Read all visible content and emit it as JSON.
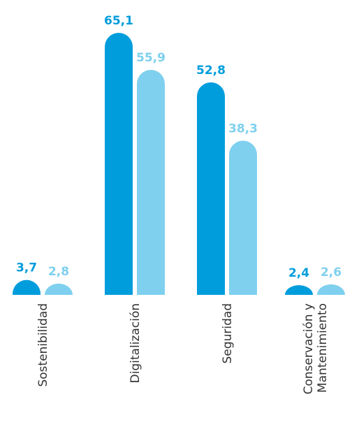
{
  "chart_data": {
    "type": "bar",
    "categories": [
      "Sostenibilidad",
      "Digitalización",
      "Seguridad",
      "Conservación y Mantenimiento"
    ],
    "category_lines": [
      [
        "Sostenibilidad"
      ],
      [
        "Digitalización"
      ],
      [
        "Seguridad"
      ],
      [
        "Conservación y",
        "Mantenimiento"
      ]
    ],
    "series": [
      {
        "values": [
          3.7,
          65.1,
          52.8,
          2.4
        ],
        "labels": [
          "3,7",
          "65,1",
          "52,8",
          "2,4"
        ],
        "color": "#009ddc"
      },
      {
        "values": [
          2.8,
          55.9,
          38.3,
          2.6
        ],
        "labels": [
          "2,8",
          "55,9",
          "38,3",
          "2,6"
        ],
        "color": "#7fd0ee"
      }
    ],
    "ylim": [
      0,
      65.1
    ],
    "grid": false,
    "legend": "none"
  }
}
